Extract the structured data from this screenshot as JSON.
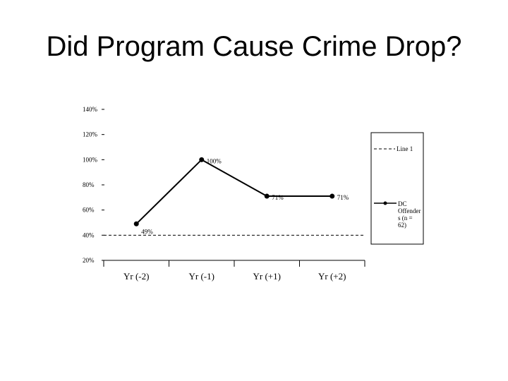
{
  "slide": {
    "title": "Did Program Cause Crime Drop?"
  },
  "chart_data": {
    "type": "line",
    "categories": [
      "Yr (-2)",
      "Yr (-1)",
      "Yr (+1)",
      "Yr (+2)"
    ],
    "ylim": [
      20,
      140
    ],
    "yticks": [
      20,
      40,
      60,
      80,
      100,
      120,
      140
    ],
    "ytick_labels": [
      "20%",
      "40%",
      "60%",
      "80%",
      "100%",
      "120%",
      "140%"
    ],
    "grid": false,
    "legend_position": "right",
    "series": [
      {
        "name": "DC Offenders (n = 62)",
        "legend_text": [
          "DC",
          "Offender",
          "s (n =",
          "62)"
        ],
        "values": [
          49,
          100,
          71,
          71
        ],
        "data_labels": [
          "49%",
          "100%",
          "71%",
          "71%"
        ],
        "style": "solid-marker",
        "color": "#000000"
      },
      {
        "name": "Line 1",
        "legend_text": [
          "Line 1"
        ],
        "values": [
          40,
          40,
          40,
          40
        ],
        "style": "dashed",
        "color": "#000000"
      }
    ]
  }
}
